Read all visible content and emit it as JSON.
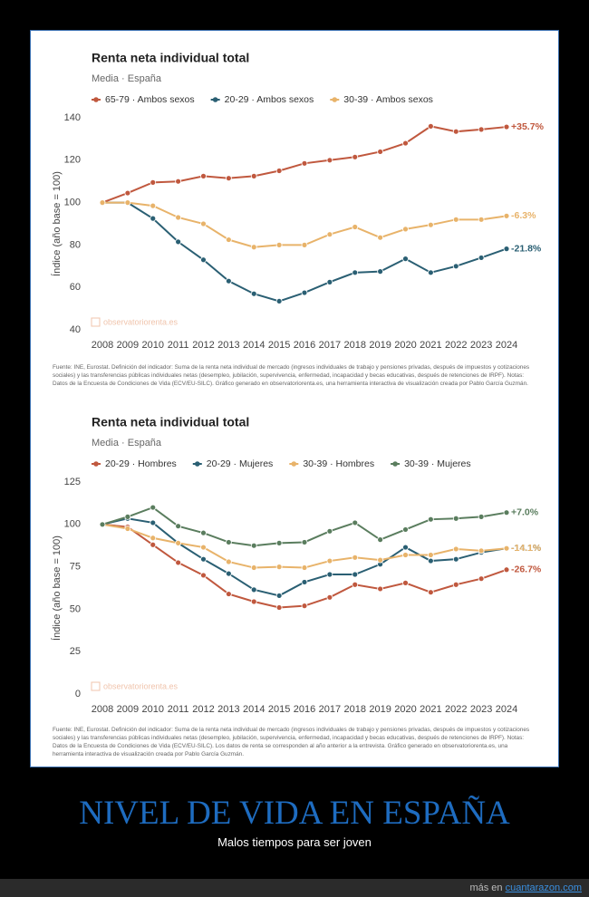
{
  "chart_data": [
    {
      "type": "line",
      "title": "Renta neta individual total",
      "subtitle": "Media · España",
      "y_label": "Índice (año base = 100)",
      "watermark": "observatoriorenta.es",
      "x": [
        2008,
        2009,
        2010,
        2011,
        2012,
        2013,
        2014,
        2015,
        2016,
        2017,
        2018,
        2019,
        2020,
        2021,
        2022,
        2023,
        2024
      ],
      "xlim": [
        2008,
        2024
      ],
      "ylim": [
        40,
        140
      ],
      "yticks": [
        40,
        60,
        80,
        100,
        120,
        140
      ],
      "grid": false,
      "series": [
        {
          "name": "65-79 · Ambos sexos",
          "color": "#c0583e",
          "change_label": "+35.7%",
          "values": [
            100,
            104.5,
            109.5,
            110,
            112.5,
            111.5,
            112.5,
            115,
            118.5,
            120,
            121.5,
            124,
            128,
            136,
            133.5,
            134.5,
            135.7
          ]
        },
        {
          "name": "20-29 · Ambos sexos",
          "color": "#2a5f73",
          "change_label": "-21.8%",
          "values": [
            100,
            100,
            92.5,
            81.5,
            73,
            63,
            57,
            53.5,
            57.5,
            62.5,
            67,
            67.5,
            73.5,
            67,
            70,
            74,
            78.2
          ]
        },
        {
          "name": "30-39 · Ambos sexos",
          "color": "#e8b36a",
          "change_label": "-6.3%",
          "values": [
            100,
            100,
            98.5,
            93,
            90,
            82.5,
            79,
            80,
            80,
            85,
            88.5,
            83.5,
            87.5,
            89.5,
            92,
            92,
            93.7
          ]
        }
      ],
      "source_note": "Fuente: INE, Eurostat. Definición del indicador: Suma de la renta neta individual de mercado (ingresos individuales de trabajo y pensiones privadas, después de impuestos y cotizaciones sociales) y las transferencias públicas individuales netas (desempleo, jubilación, supervivencia, enfermedad, incapacidad y becas educativas, después de retenciones de IRPF). Notas: Datos de la Encuesta de Condiciones de Vida (ECV/EU-SILC). Gráfico generado en observatoriorenta.es, una herramienta interactiva de visualización creada por Pablo García Guzmán."
    },
    {
      "type": "line",
      "title": "Renta neta individual total",
      "subtitle": "Media · España",
      "y_label": "Índice (año base = 100)",
      "watermark": "observatoriorenta.es",
      "x": [
        2008,
        2009,
        2010,
        2011,
        2012,
        2013,
        2014,
        2015,
        2016,
        2017,
        2018,
        2019,
        2020,
        2021,
        2022,
        2023,
        2024
      ],
      "xlim": [
        2008,
        2024
      ],
      "ylim": [
        0,
        125
      ],
      "yticks": [
        0,
        25,
        50,
        75,
        100,
        125
      ],
      "grid": false,
      "series": [
        {
          "name": "20-29 · Hombres",
          "color": "#c0583e",
          "change_label": "-26.7%",
          "values": [
            100,
            98.5,
            88,
            77.5,
            70,
            59,
            54.5,
            51,
            52,
            57,
            64.5,
            62,
            65.5,
            60,
            64.5,
            68,
            73.3
          ]
        },
        {
          "name": "20-29 · Mujeres",
          "color": "#2a5f73",
          "change_label": "-14.1%",
          "values": [
            100,
            103.5,
            101,
            89,
            79.5,
            71,
            61.5,
            58,
            66,
            70.5,
            70.5,
            76.5,
            86.5,
            78.5,
            79.5,
            83.5,
            85.9
          ]
        },
        {
          "name": "30-39 · Hombres",
          "color": "#e8b36a",
          "change_label": "-14.1%",
          "values": [
            100,
            97.5,
            92,
            89,
            86.5,
            78,
            74.5,
            75,
            74.5,
            78.5,
            80.5,
            79,
            82,
            82,
            85.5,
            84.5,
            85.9
          ]
        },
        {
          "name": "30-39 · Mujeres",
          "color": "#5a7d5e",
          "change_label": "+7.0%",
          "values": [
            100,
            104.5,
            110,
            99,
            95,
            89.5,
            87.5,
            89,
            89.5,
            96,
            101,
            91,
            97,
            103,
            103.5,
            104.5,
            107.0
          ]
        }
      ],
      "source_note": "Fuente: INE, Eurostat. Definición del indicador: Suma de la renta neta individual de mercado (ingresos individuales de trabajo y pensiones privadas, después de impuestos y cotizaciones sociales) y las transferencias públicas individuales netas (desempleo, jubilación, supervivencia, enfermedad, incapacidad y becas educativas, después de retenciones de IRPF). Notas: Datos de la Encuesta de Condiciones de Vida (ECV/EU-SILC). Los datos de renta se corresponden al año anterior a la entrevista. Gráfico generado en observatoriorenta.es, una herramienta interactiva de visualización creada por Pablo García Guzmán."
    }
  ],
  "post": {
    "title": "NIVEL DE VIDA EN ESPAÑA",
    "subtitle": "Malos tiempos para ser joven",
    "footer_prefix": "más en",
    "footer_site": "cuantarazon.com"
  }
}
